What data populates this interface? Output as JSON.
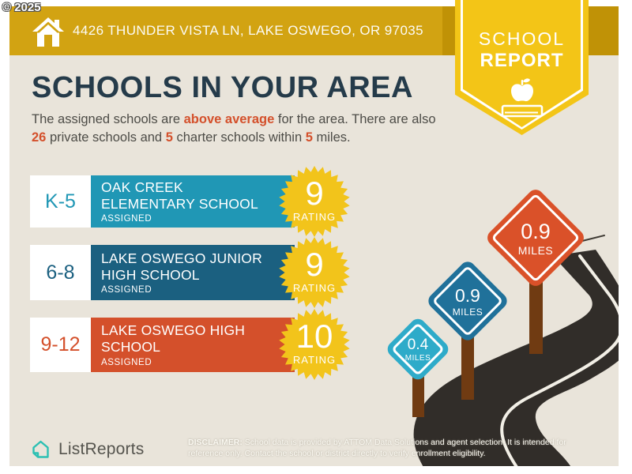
{
  "copyright": "© 2025",
  "header": {
    "address": "4426 THUNDER VISTA LN, LAKE OSWEGO, OR 97035",
    "bar_color": "#D2A312",
    "badge": {
      "line1": "SCHOOL",
      "line2": "REPORT",
      "color": "#F3C517"
    }
  },
  "main": {
    "title": "SCHOOLS IN YOUR AREA",
    "intro": {
      "t1": "The assigned schools are ",
      "e1": "above average",
      "t2": " for the area. There are also ",
      "e2": "26",
      "t3": " private schools and ",
      "e3": "5",
      "t4": " charter schools within ",
      "e4": "5",
      "t5": " miles."
    },
    "schools": [
      {
        "grade": "K-5",
        "name_line1": "OAK CREEK",
        "name_line2": "ELEMENTARY SCHOOL",
        "status": "ASSIGNED",
        "rating": "9",
        "rating_label": "RATING",
        "color": "#2097B5"
      },
      {
        "grade": "6-8",
        "name_line1": "LAKE OSWEGO JUNIOR",
        "name_line2": "HIGH SCHOOL",
        "status": "ASSIGNED",
        "rating": "9",
        "rating_label": "RATING",
        "color": "#1B6080"
      },
      {
        "grade": "9-12",
        "name_line1": "LAKE OSWEGO HIGH",
        "name_line2": "SCHOOL",
        "status": "ASSIGNED",
        "rating": "10",
        "rating_label": "RATING",
        "color": "#D4502B"
      }
    ]
  },
  "map": {
    "signs": [
      {
        "value": "0.4",
        "label": "MILES",
        "color": "#2EABC9"
      },
      {
        "value": "0.9",
        "label": "MILES",
        "color": "#20719A"
      },
      {
        "value": "0.9",
        "label": "MILES",
        "color": "#DA5129"
      }
    ],
    "road_color": "#312D29",
    "post_color": "#703B12"
  },
  "rating_badge_color": "#F2C41B",
  "footer": {
    "brand": "ListReports",
    "brand_color": "#2CC0B3",
    "disclaimer_label": "DISCLAIMER:",
    "disclaimer_text": " School data is provided by ATTOM Data Solutions and agent selection. It is intended for reference only. Contact the school or district directly to verify enrollment eligibility."
  }
}
